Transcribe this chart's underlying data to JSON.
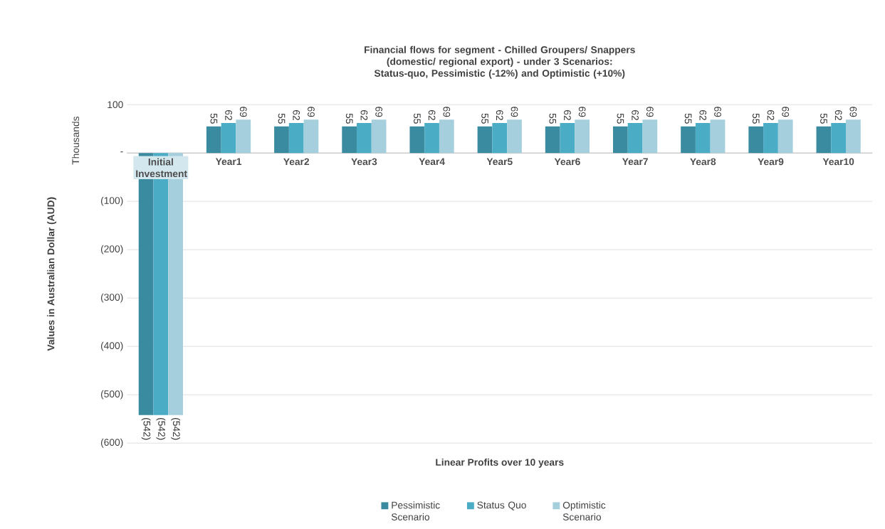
{
  "chart_data": {
    "type": "bar",
    "title": "Financial flows for segment - Chilled Groupers/ Snappers  (domestic/ regional export) - under 3 Scenarios: Status-quo, Pessimistic (-12%) and Optimistic (+10%)",
    "xlabel": "Linear Profits over 10 years",
    "ylabel": "Values in Australian Dollar (AUD)",
    "annotations": [
      "Thousands"
    ],
    "categories": [
      "Initial Investment",
      "Year1",
      "Year2",
      "Year3",
      "Year4",
      "Year5",
      "Year6",
      "Year7",
      "Year8",
      "Year9",
      "Year10"
    ],
    "series": [
      {
        "name": "Pessimistic Scenario",
        "color": "#3a8ba0",
        "values": [
          -542,
          55,
          55,
          55,
          55,
          55,
          55,
          55,
          55,
          55,
          55
        ],
        "value_labels": [
          "(542)",
          "55",
          "55",
          "55",
          "55",
          "55",
          "55",
          "55",
          "55",
          "55",
          "55"
        ]
      },
      {
        "name": "Status Quo",
        "color": "#4bacc6",
        "values": [
          -542,
          62,
          62,
          62,
          62,
          62,
          62,
          62,
          62,
          62,
          62
        ],
        "value_labels": [
          "(542)",
          "62",
          "62",
          "62",
          "62",
          "62",
          "62",
          "62",
          "62",
          "62",
          "62"
        ]
      },
      {
        "name": "Optimistic Scenario",
        "color": "#a5cfdc",
        "values": [
          -542,
          69,
          69,
          69,
          69,
          69,
          69,
          69,
          69,
          69,
          69
        ],
        "value_labels": [
          "(542)",
          "69",
          "69",
          "69",
          "69",
          "69",
          "69",
          "69",
          "69",
          "69",
          "69"
        ]
      }
    ],
    "ylim": [
      -600,
      100
    ],
    "yticks": [
      100,
      {
        "value": 0,
        "label": "-"
      },
      {
        "value": -100,
        "label": "(100)"
      },
      {
        "value": -200,
        "label": "(200)"
      },
      {
        "value": -300,
        "label": "(300)"
      },
      {
        "value": -400,
        "label": "(400)"
      },
      {
        "value": -500,
        "label": "(500)"
      },
      {
        "value": -600,
        "label": "(600)"
      }
    ],
    "grid": "y",
    "legend": "bottom"
  }
}
